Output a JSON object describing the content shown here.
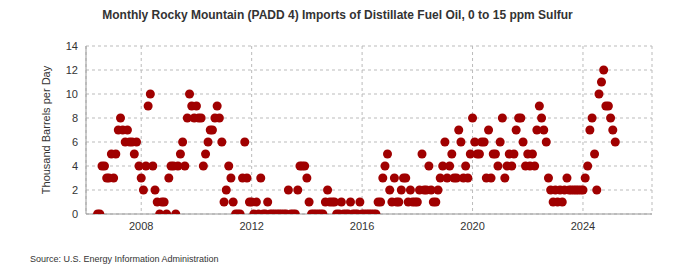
{
  "chart_data": {
    "type": "scatter",
    "title": "Monthly Rocky Mountain (PADD 4) Imports of Distillate Fuel Oil, 0 to 15 ppm Sulfur",
    "y_label": "Thousand Barrels per Day",
    "source": "Source: U.S. Energy Information Administration",
    "color": "#a00000",
    "marker": "circle",
    "grid": true,
    "xlim": [
      2006,
      2026.5
    ],
    "xticks": [
      2008,
      2012,
      2016,
      2020,
      2024
    ],
    "ylim": [
      0,
      14
    ],
    "yticks": [
      0,
      2,
      4,
      6,
      8,
      10,
      12,
      14
    ],
    "x": [
      2006.42,
      2006.5,
      2006.58,
      2006.67,
      2006.75,
      2006.83,
      2006.92,
      2007,
      2007.08,
      2007.17,
      2007.25,
      2007.33,
      2007.42,
      2007.5,
      2007.58,
      2007.67,
      2007.75,
      2007.83,
      2007.92,
      2008,
      2008.08,
      2008.17,
      2008.25,
      2008.33,
      2008.42,
      2008.5,
      2008.58,
      2008.67,
      2008.75,
      2008.83,
      2008.92,
      2009,
      2009.08,
      2009.17,
      2009.25,
      2009.33,
      2009.42,
      2009.5,
      2009.58,
      2009.67,
      2009.75,
      2009.83,
      2009.92,
      2010,
      2010.08,
      2010.17,
      2010.25,
      2010.33,
      2010.42,
      2010.5,
      2010.58,
      2010.67,
      2010.75,
      2010.83,
      2010.92,
      2011,
      2011.08,
      2011.17,
      2011.25,
      2011.33,
      2011.42,
      2011.5,
      2011.58,
      2011.67,
      2011.75,
      2011.83,
      2011.92,
      2012,
      2012.08,
      2012.17,
      2012.25,
      2012.33,
      2012.42,
      2012.5,
      2012.58,
      2012.67,
      2012.75,
      2012.83,
      2012.92,
      2013,
      2013.08,
      2013.17,
      2013.25,
      2013.33,
      2013.42,
      2013.5,
      2013.58,
      2013.67,
      2013.75,
      2013.83,
      2013.92,
      2014,
      2014.08,
      2014.17,
      2014.25,
      2014.33,
      2014.42,
      2014.5,
      2014.58,
      2014.67,
      2014.75,
      2014.83,
      2014.92,
      2015,
      2015.08,
      2015.17,
      2015.25,
      2015.33,
      2015.42,
      2015.5,
      2015.58,
      2015.67,
      2015.75,
      2015.83,
      2015.92,
      2016,
      2016.08,
      2016.17,
      2016.25,
      2016.33,
      2016.42,
      2016.5,
      2016.58,
      2016.67,
      2016.75,
      2016.83,
      2016.92,
      2017,
      2017.08,
      2017.17,
      2017.25,
      2017.33,
      2017.42,
      2017.5,
      2017.58,
      2017.67,
      2017.75,
      2017.83,
      2017.92,
      2018,
      2018.08,
      2018.17,
      2018.25,
      2018.33,
      2018.42,
      2018.5,
      2018.58,
      2018.67,
      2018.75,
      2018.83,
      2018.92,
      2019,
      2019.08,
      2019.17,
      2019.25,
      2019.33,
      2019.42,
      2019.5,
      2019.58,
      2019.67,
      2019.75,
      2019.83,
      2019.92,
      2020,
      2020.08,
      2020.17,
      2020.25,
      2020.33,
      2020.42,
      2020.5,
      2020.58,
      2020.67,
      2020.75,
      2020.83,
      2020.92,
      2021,
      2021.08,
      2021.17,
      2021.25,
      2021.33,
      2021.42,
      2021.5,
      2021.58,
      2021.67,
      2021.75,
      2021.83,
      2021.92,
      2022,
      2022.08,
      2022.17,
      2022.25,
      2022.33,
      2022.42,
      2022.5,
      2022.58,
      2022.67,
      2022.75,
      2022.83,
      2022.92,
      2023,
      2023.08,
      2023.17,
      2023.25,
      2023.33,
      2023.42,
      2023.5,
      2023.58,
      2023.67,
      2023.75,
      2023.83,
      2023.92,
      2024,
      2024.08,
      2024.17,
      2024.25,
      2024.33,
      2024.42,
      2024.5,
      2024.58,
      2024.67,
      2024.75,
      2024.83,
      2024.92,
      2025,
      2025.08,
      2025.17
    ],
    "values": [
      0,
      0,
      4,
      4,
      3,
      3,
      5,
      3,
      5,
      7,
      8,
      7,
      6,
      7,
      6,
      6,
      5,
      6,
      4,
      3,
      2,
      4,
      9,
      10,
      4,
      2,
      1,
      0,
      1,
      1,
      0,
      3,
      4,
      4,
      0,
      4,
      5,
      6,
      4,
      8,
      10,
      9,
      8,
      9,
      8,
      8,
      4,
      5,
      6,
      7,
      7,
      8,
      9,
      8,
      6,
      1,
      2,
      4,
      3,
      1,
      0,
      0,
      0,
      3,
      6,
      3,
      1,
      1,
      0,
      1,
      0,
      3,
      0,
      0,
      1,
      0,
      0,
      0,
      0,
      0,
      0,
      0,
      0,
      2,
      0,
      0,
      0,
      2,
      4,
      4,
      4,
      3,
      1,
      0,
      0,
      0,
      0,
      0,
      0,
      1,
      2,
      1,
      1,
      1,
      0,
      0,
      1,
      0,
      0,
      0,
      1,
      0,
      0,
      0,
      1,
      0,
      0,
      0,
      0,
      0,
      0,
      0,
      1,
      1,
      3,
      4,
      5,
      2,
      1,
      3,
      1,
      1,
      2,
      3,
      3,
      1,
      2,
      1,
      1,
      1,
      2,
      5,
      2,
      2,
      4,
      2,
      1,
      1,
      2,
      3,
      4,
      6,
      3,
      4,
      5,
      3,
      3,
      7,
      6,
      3,
      4,
      3,
      5,
      8,
      6,
      5,
      5,
      6,
      6,
      3,
      7,
      3,
      5,
      5,
      4,
      6,
      8,
      3,
      4,
      5,
      4,
      5,
      7,
      8,
      8,
      6,
      4,
      5,
      4,
      5,
      4,
      7,
      9,
      8,
      7,
      6,
      3,
      2,
      1,
      2,
      1,
      2,
      1,
      2,
      3,
      2,
      2,
      2,
      2,
      2,
      2,
      2,
      3,
      4,
      7,
      8,
      5,
      2,
      10,
      11,
      12,
      9,
      9,
      8,
      7,
      6
    ]
  }
}
